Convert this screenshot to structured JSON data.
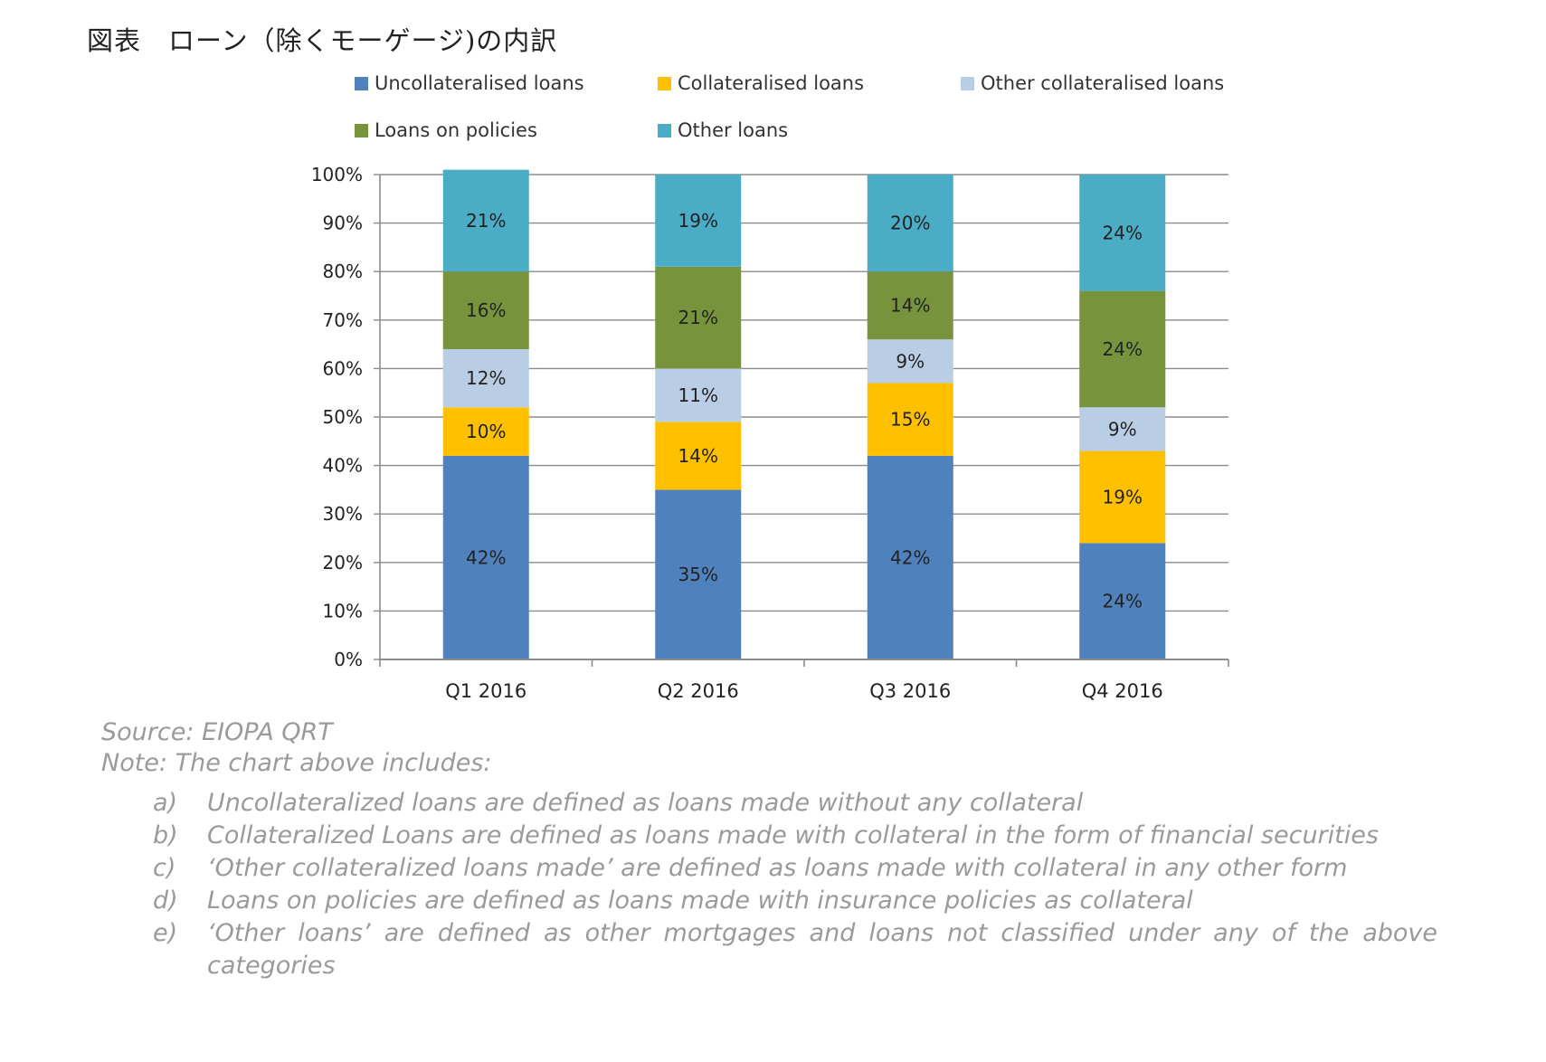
{
  "title": "図表　ローン（除くモーゲージ)の内訳",
  "chart_data": {
    "type": "bar",
    "stacked": true,
    "categories": [
      "Q1 2016",
      "Q2 2016",
      "Q3 2016",
      "Q4 2016"
    ],
    "series": [
      {
        "name": "Uncollateralised loans",
        "color": "#4F81BD",
        "values": [
          42,
          35,
          42,
          24
        ]
      },
      {
        "name": "Collateralised loans",
        "color": "#FFC000",
        "values": [
          10,
          14,
          15,
          19
        ]
      },
      {
        "name": "Other collateralised loans",
        "color": "#B9CDE5",
        "values": [
          12,
          11,
          9,
          9
        ]
      },
      {
        "name": "Loans on policies",
        "color": "#77933C",
        "values": [
          16,
          21,
          14,
          24
        ]
      },
      {
        "name": "Other loans",
        "color": "#4BACC6",
        "values": [
          21,
          19,
          20,
          24
        ]
      }
    ],
    "y_ticks": [
      "0%",
      "10%",
      "20%",
      "30%",
      "40%",
      "50%",
      "60%",
      "70%",
      "80%",
      "90%",
      "100%"
    ],
    "ylim": [
      0,
      100
    ],
    "legend_position": "top",
    "grid": true
  },
  "notes": {
    "source": "Source: EIOPA QRT",
    "heading": "Note: The chart above includes:",
    "items": [
      {
        "letter": "a)",
        "text": "Uncollateralized loans are defined as loans made without any collateral"
      },
      {
        "letter": "b)",
        "text": "Collateralized Loans are defined as loans made with collateral in the form of financial securities"
      },
      {
        "letter": "c)",
        "text": "‘Other collateralized loans made’ are defined as loans made with collateral in any other form"
      },
      {
        "letter": "d)",
        "text": "Loans on policies are defined as loans made with insurance policies as collateral"
      },
      {
        "letter": "e)",
        "text": "‘Other loans’ are defined as other mortgages and loans not classified under any of the above categories"
      }
    ]
  }
}
